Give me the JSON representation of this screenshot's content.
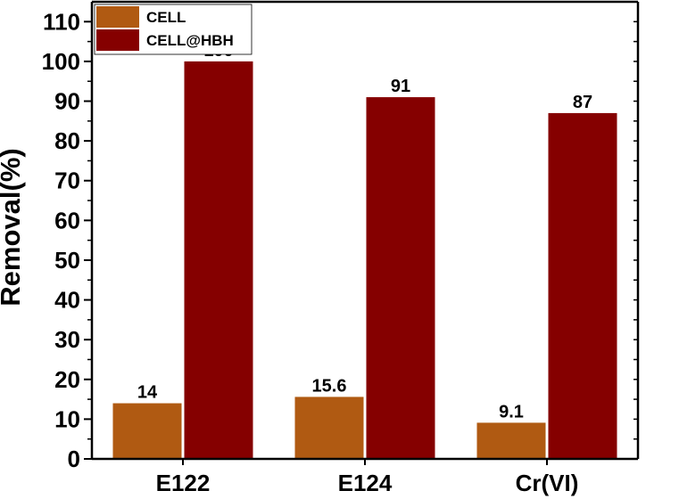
{
  "chart_data": {
    "type": "bar",
    "title": "",
    "xlabel": "",
    "ylabel": "Removal(%)",
    "ylim": [
      0,
      115
    ],
    "yticks": [
      0,
      10,
      20,
      30,
      40,
      50,
      60,
      70,
      80,
      90,
      100,
      110
    ],
    "categories": [
      "E122",
      "E124",
      "Cr(VI)"
    ],
    "series": [
      {
        "name": "CELL",
        "values": [
          14,
          15.6,
          9.1
        ],
        "labels": [
          "14",
          "15.6",
          "9.1"
        ],
        "color": "#b05a12"
      },
      {
        "name": "CELL@HBH",
        "values": [
          100,
          91,
          87
        ],
        "labels": [
          "100",
          "91",
          "87"
        ],
        "color": "#850000"
      }
    ],
    "grid": false,
    "legend_position": "top-left"
  }
}
